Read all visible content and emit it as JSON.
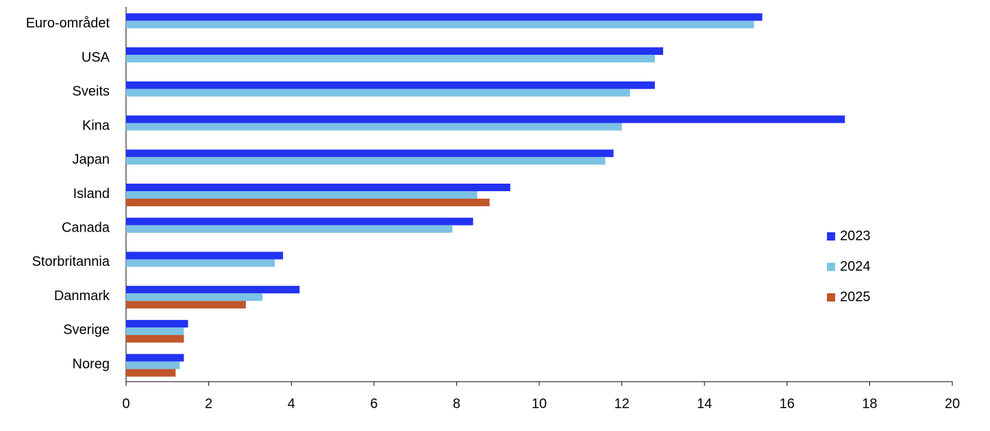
{
  "chart_data": {
    "type": "hbar",
    "categories": [
      "Euro-området",
      "USA",
      "Sveits",
      "Kina",
      "Japan",
      "Island",
      "Canada",
      "Storbritannia",
      "Danmark",
      "Sverige",
      "Noreg"
    ],
    "series": [
      {
        "name": "2023",
        "color": "#2233f2",
        "values": [
          15.4,
          13.0,
          12.8,
          17.4,
          11.8,
          9.3,
          8.4,
          3.8,
          4.2,
          1.5,
          1.4
        ]
      },
      {
        "name": "2024",
        "color": "#7cc2e4",
        "values": [
          15.2,
          12.8,
          12.2,
          12.0,
          11.6,
          8.5,
          7.9,
          3.6,
          3.3,
          1.4,
          1.3
        ]
      },
      {
        "name": "2025",
        "color": "#c0562a",
        "values": [
          null,
          null,
          null,
          null,
          null,
          8.8,
          null,
          null,
          2.9,
          1.4,
          1.2
        ]
      }
    ],
    "xlim": [
      0,
      20
    ],
    "xticks": [
      0,
      2,
      4,
      6,
      8,
      10,
      12,
      14,
      16,
      18,
      20
    ],
    "legend": "right"
  }
}
